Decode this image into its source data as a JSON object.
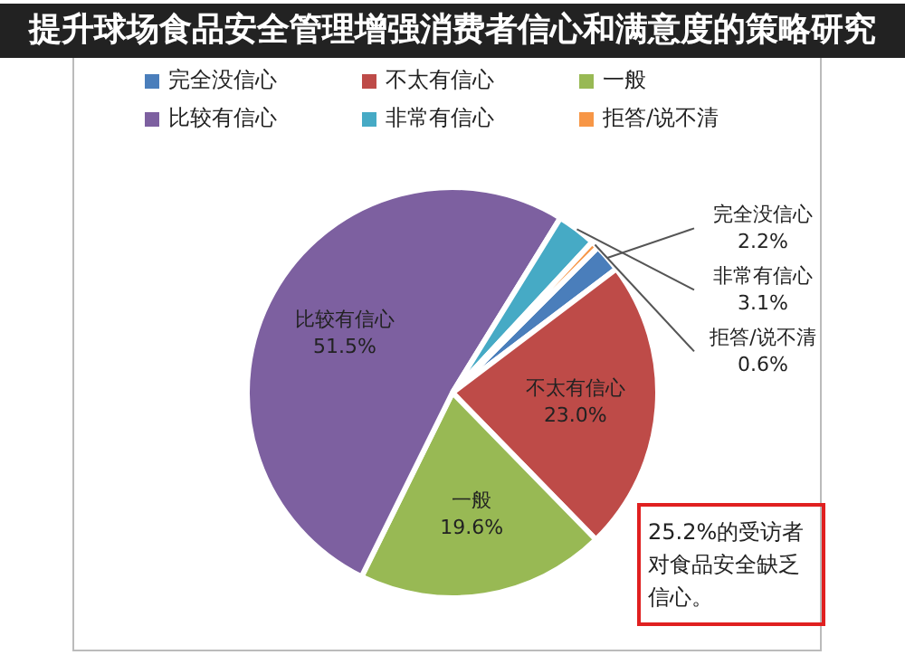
{
  "chart_data": {
    "type": "pie",
    "title": "提升球场食品安全管理增强消费者信心和满意度的策略研究",
    "categories": [
      "完全没信心",
      "不太有信心",
      "一般",
      "比较有信心",
      "非常有信心",
      "拒答/说不清"
    ],
    "values": [
      2.2,
      23.0,
      19.6,
      51.5,
      3.1,
      0.6
    ],
    "colors": [
      "#4a7ebb",
      "#be4b48",
      "#98b954",
      "#7d60a0",
      "#46aac5",
      "#f79646"
    ],
    "value_labels": [
      "2.2%",
      "23.0%",
      "19.6%",
      "51.5%",
      "3.1%",
      "0.6%"
    ],
    "legend": "top",
    "annotations": [
      "25.2%的受访者对食品安全缺乏信心。"
    ]
  }
}
